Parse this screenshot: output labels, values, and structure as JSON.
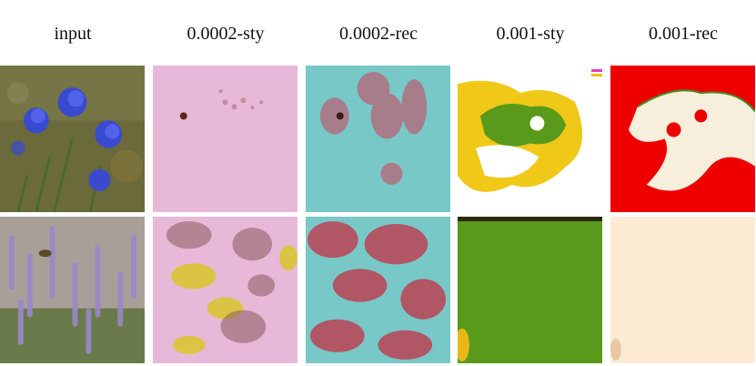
{
  "columns": [
    {
      "key": "input",
      "label": "input"
    },
    {
      "key": "sty_0002",
      "label": "0.0002-sty"
    },
    {
      "key": "rec_0002",
      "label": "0.0002-rec"
    },
    {
      "key": "sty_001",
      "label": "0.001-sty"
    },
    {
      "key": "rec_001",
      "label": "0.001-rec"
    }
  ],
  "rows": [
    {
      "key": "cornflower",
      "subject": "blue cornflowers"
    },
    {
      "key": "lavender",
      "subject": "lavender field with bee"
    }
  ],
  "colors": {
    "pink_bg": "#e8b8d8",
    "teal_bg": "#78c8c8",
    "green": "#5a9a1a",
    "yellow": "#f0c818",
    "red": "#ee0000",
    "cream": "#fdebd6",
    "cornflower_blue": "#3a4ad0",
    "lavender_purple": "#9a88c8"
  }
}
